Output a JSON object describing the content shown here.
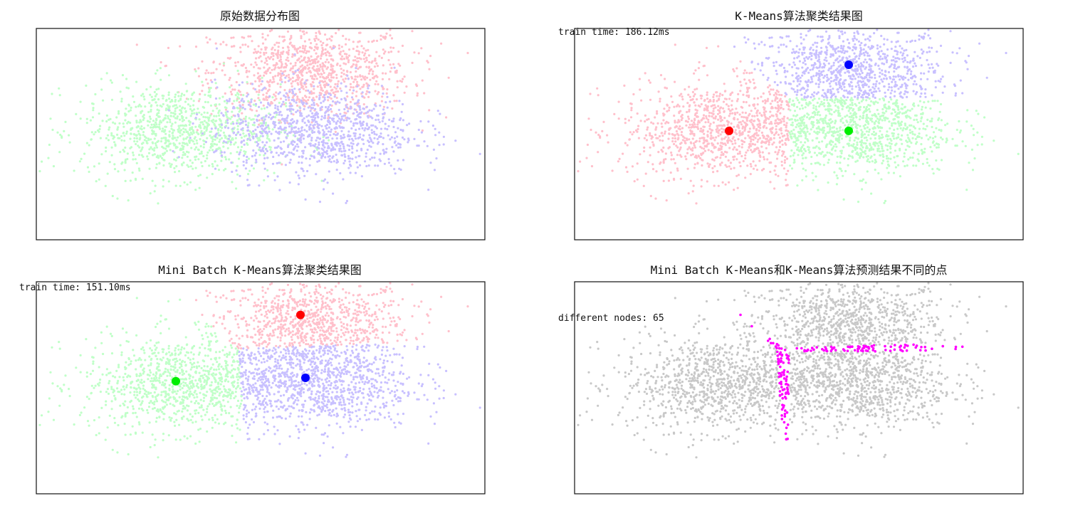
{
  "chart_data": [
    {
      "type": "scatter",
      "title": "原始数据分布图",
      "xlim": [
        -4.5,
        4.5
      ],
      "ylim": [
        -3.2,
        3.2
      ],
      "grid": false,
      "axes_ticks": "hidden",
      "generation": {
        "points_per_cluster": 1000,
        "std": [
          1.0,
          0.7
        ]
      },
      "series": [
        {
          "color": "#ffc0cb",
          "center": [
            1.0,
            1.9
          ]
        },
        {
          "color": "#c0ffc8",
          "center": [
            -1.6,
            0.1
          ]
        },
        {
          "color": "#c8c0ff",
          "center": [
            1.1,
            0.1
          ]
        }
      ],
      "annotations": []
    },
    {
      "type": "scatter",
      "title": "K-Means算法聚类结果图",
      "xlim": [
        -4.5,
        4.5
      ],
      "ylim": [
        -3.2,
        3.2
      ],
      "grid": false,
      "axes_ticks": "hidden",
      "series": [
        {
          "color": "#ffc0cb",
          "center": [
            -1.4,
            0.1
          ],
          "centroid_color": "#ff0000"
        },
        {
          "color": "#c8c0ff",
          "center": [
            1.0,
            2.1
          ],
          "centroid_color": "#0000ff"
        },
        {
          "color": "#c0ffc8",
          "center": [
            1.0,
            0.1
          ],
          "centroid_color": "#00ee00"
        }
      ],
      "annotations": [
        {
          "text": "train time: 186.12ms"
        }
      ]
    },
    {
      "type": "scatter",
      "title": "Mini Batch K-Means算法聚类结果图",
      "xlim": [
        -4.5,
        4.5
      ],
      "ylim": [
        -3.2,
        3.2
      ],
      "grid": false,
      "axes_ticks": "hidden",
      "series": [
        {
          "color": "#ffc0cb",
          "center": [
            0.8,
            2.2
          ],
          "centroid_color": "#ff0000"
        },
        {
          "color": "#c8c0ff",
          "center": [
            0.9,
            0.3
          ],
          "centroid_color": "#0000ff"
        },
        {
          "color": "#c0ffc8",
          "center": [
            -1.7,
            0.2
          ],
          "centroid_color": "#00ee00"
        }
      ],
      "annotations": [
        {
          "text": "train time: 151.10ms"
        }
      ]
    },
    {
      "type": "scatter",
      "title": "Mini Batch K-Means和K-Means算法预测结果不同的点",
      "xlim": [
        -4.5,
        4.5
      ],
      "ylim": [
        -3.2,
        3.2
      ],
      "grid": false,
      "axes_ticks": "hidden",
      "series": [
        {
          "color": "#c8c8c8"
        },
        {
          "color": "#ff00ff"
        }
      ],
      "annotations": [
        {
          "text": "different nodes: 65"
        }
      ]
    }
  ]
}
